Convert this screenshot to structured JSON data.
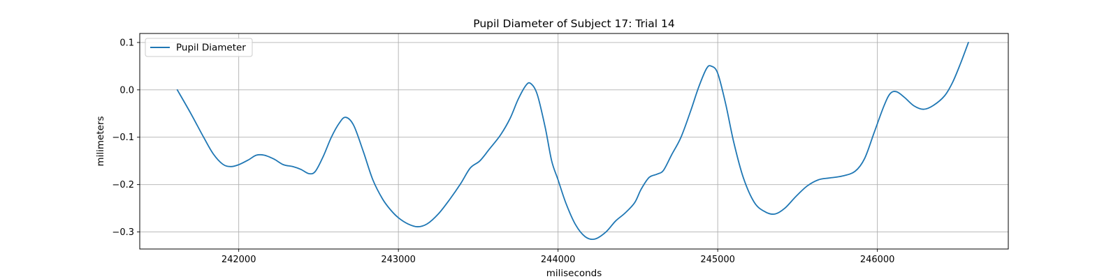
{
  "chart_data": {
    "type": "line",
    "title": "Pupil Diameter of Subject 17: Trial 14",
    "xlabel": "miliseconds",
    "ylabel": "milimeters",
    "xlim": [
      241380,
      246820
    ],
    "ylim": [
      -0.336,
      0.119
    ],
    "x_ticks": [
      242000,
      243000,
      244000,
      245000,
      246000
    ],
    "y_ticks": [
      0.1,
      0.0,
      -0.1,
      -0.2,
      -0.3
    ],
    "x_tick_labels": [
      "242000",
      "243000",
      "244000",
      "245000",
      "246000"
    ],
    "y_tick_labels": [
      "0.1",
      "0.0",
      "−0.1",
      "−0.2",
      "−0.3"
    ],
    "grid": true,
    "legend_position": "upper-left",
    "series": [
      {
        "name": "Pupil Diameter",
        "color": "#1f77b4",
        "points": [
          [
            241615,
            0.0
          ],
          [
            241700,
            -0.05
          ],
          [
            241780,
            -0.1
          ],
          [
            241840,
            -0.135
          ],
          [
            241900,
            -0.157
          ],
          [
            241950,
            -0.162
          ],
          [
            242000,
            -0.158
          ],
          [
            242060,
            -0.148
          ],
          [
            242110,
            -0.138
          ],
          [
            242160,
            -0.138
          ],
          [
            242220,
            -0.146
          ],
          [
            242280,
            -0.158
          ],
          [
            242340,
            -0.162
          ],
          [
            242390,
            -0.168
          ],
          [
            242440,
            -0.177
          ],
          [
            242480,
            -0.172
          ],
          [
            242530,
            -0.14
          ],
          [
            242580,
            -0.1
          ],
          [
            242630,
            -0.07
          ],
          [
            242670,
            -0.058
          ],
          [
            242720,
            -0.075
          ],
          [
            242780,
            -0.13
          ],
          [
            242840,
            -0.19
          ],
          [
            242900,
            -0.23
          ],
          [
            242950,
            -0.253
          ],
          [
            243000,
            -0.27
          ],
          [
            243060,
            -0.283
          ],
          [
            243120,
            -0.289
          ],
          [
            243180,
            -0.283
          ],
          [
            243250,
            -0.262
          ],
          [
            243320,
            -0.232
          ],
          [
            243390,
            -0.198
          ],
          [
            243450,
            -0.165
          ],
          [
            243510,
            -0.15
          ],
          [
            243570,
            -0.125
          ],
          [
            243640,
            -0.095
          ],
          [
            243700,
            -0.06
          ],
          [
            243750,
            -0.02
          ],
          [
            243800,
            0.01
          ],
          [
            243830,
            0.013
          ],
          [
            243870,
            -0.01
          ],
          [
            243920,
            -0.08
          ],
          [
            243960,
            -0.15
          ],
          [
            244000,
            -0.19
          ],
          [
            244050,
            -0.24
          ],
          [
            244110,
            -0.285
          ],
          [
            244170,
            -0.31
          ],
          [
            244230,
            -0.315
          ],
          [
            244300,
            -0.3
          ],
          [
            244360,
            -0.277
          ],
          [
            244420,
            -0.26
          ],
          [
            244480,
            -0.238
          ],
          [
            244520,
            -0.21
          ],
          [
            244570,
            -0.185
          ],
          [
            244620,
            -0.178
          ],
          [
            244660,
            -0.17
          ],
          [
            244710,
            -0.138
          ],
          [
            244770,
            -0.1
          ],
          [
            244830,
            -0.045
          ],
          [
            244880,
            0.005
          ],
          [
            244930,
            0.045
          ],
          [
            244960,
            0.05
          ],
          [
            245000,
            0.035
          ],
          [
            245050,
            -0.03
          ],
          [
            245100,
            -0.11
          ],
          [
            245160,
            -0.185
          ],
          [
            245230,
            -0.238
          ],
          [
            245300,
            -0.258
          ],
          [
            245360,
            -0.262
          ],
          [
            245420,
            -0.25
          ],
          [
            245490,
            -0.225
          ],
          [
            245560,
            -0.203
          ],
          [
            245630,
            -0.19
          ],
          [
            245700,
            -0.186
          ],
          [
            245780,
            -0.182
          ],
          [
            245860,
            -0.172
          ],
          [
            245920,
            -0.145
          ],
          [
            245980,
            -0.09
          ],
          [
            246040,
            -0.035
          ],
          [
            246080,
            -0.008
          ],
          [
            246120,
            -0.004
          ],
          [
            246170,
            -0.016
          ],
          [
            246230,
            -0.034
          ],
          [
            246290,
            -0.041
          ],
          [
            246350,
            -0.033
          ],
          [
            246420,
            -0.013
          ],
          [
            246470,
            0.015
          ],
          [
            246520,
            0.055
          ],
          [
            246570,
            0.1
          ]
        ]
      }
    ]
  }
}
